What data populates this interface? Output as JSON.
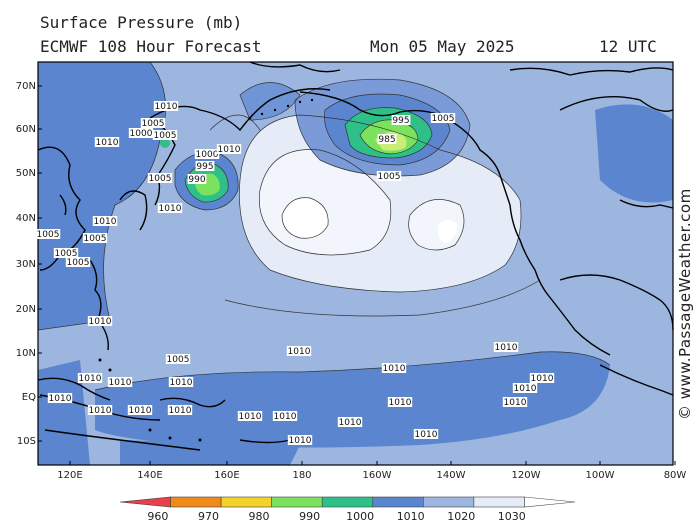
{
  "header": {
    "title": "Surface Pressure (mb)",
    "model": "ECMWF 108 Hour Forecast",
    "date": "Mon 05 May 2025",
    "time": "12 UTC"
  },
  "credit": "© www.PassageWeather.com",
  "axes": {
    "lat_labels": [
      "70N",
      "60N",
      "50N",
      "40N",
      "30N",
      "20N",
      "10N",
      "EQ",
      "10S"
    ],
    "lon_labels": [
      "120E",
      "140E",
      "160E",
      "180",
      "160W",
      "140W",
      "120W",
      "100W",
      "80W"
    ]
  },
  "colorbar": {
    "labels": [
      "960",
      "970",
      "980",
      "990",
      "1000",
      "1010",
      "1020",
      "1030"
    ],
    "colors": [
      "#e8404a",
      "#f08a1a",
      "#f4d22c",
      "#7ae25c",
      "#2fbf88",
      "#5b85cf",
      "#9cb6e0",
      "#e6ecf7",
      "#ffffff"
    ]
  },
  "isobar_labels": [
    {
      "t": "1010"
    },
    {
      "t": "1005"
    },
    {
      "t": "1000"
    },
    {
      "t": "1005"
    },
    {
      "t": "1010"
    },
    {
      "t": "1000"
    },
    {
      "t": "995"
    },
    {
      "t": "990"
    },
    {
      "t": "1005"
    },
    {
      "t": "1010"
    },
    {
      "t": "1010"
    },
    {
      "t": "1010"
    },
    {
      "t": "1005"
    },
    {
      "t": "1005"
    },
    {
      "t": "1005"
    },
    {
      "t": "1005"
    },
    {
      "t": "995"
    },
    {
      "t": "985"
    },
    {
      "t": "1005"
    },
    {
      "t": "1005"
    },
    {
      "t": "1010"
    },
    {
      "t": "1005"
    },
    {
      "t": "1010"
    },
    {
      "t": "1010"
    },
    {
      "t": "1010"
    },
    {
      "t": "1010"
    },
    {
      "t": "1010"
    },
    {
      "t": "1010"
    },
    {
      "t": "1010"
    },
    {
      "t": "1010"
    },
    {
      "t": "1010"
    },
    {
      "t": "1010"
    },
    {
      "t": "1010"
    },
    {
      "t": "1010"
    },
    {
      "t": "1010"
    },
    {
      "t": "1010"
    },
    {
      "t": "1010"
    },
    {
      "t": "1010"
    },
    {
      "t": "1010"
    },
    {
      "t": "1010"
    },
    {
      "t": "1010"
    }
  ]
}
